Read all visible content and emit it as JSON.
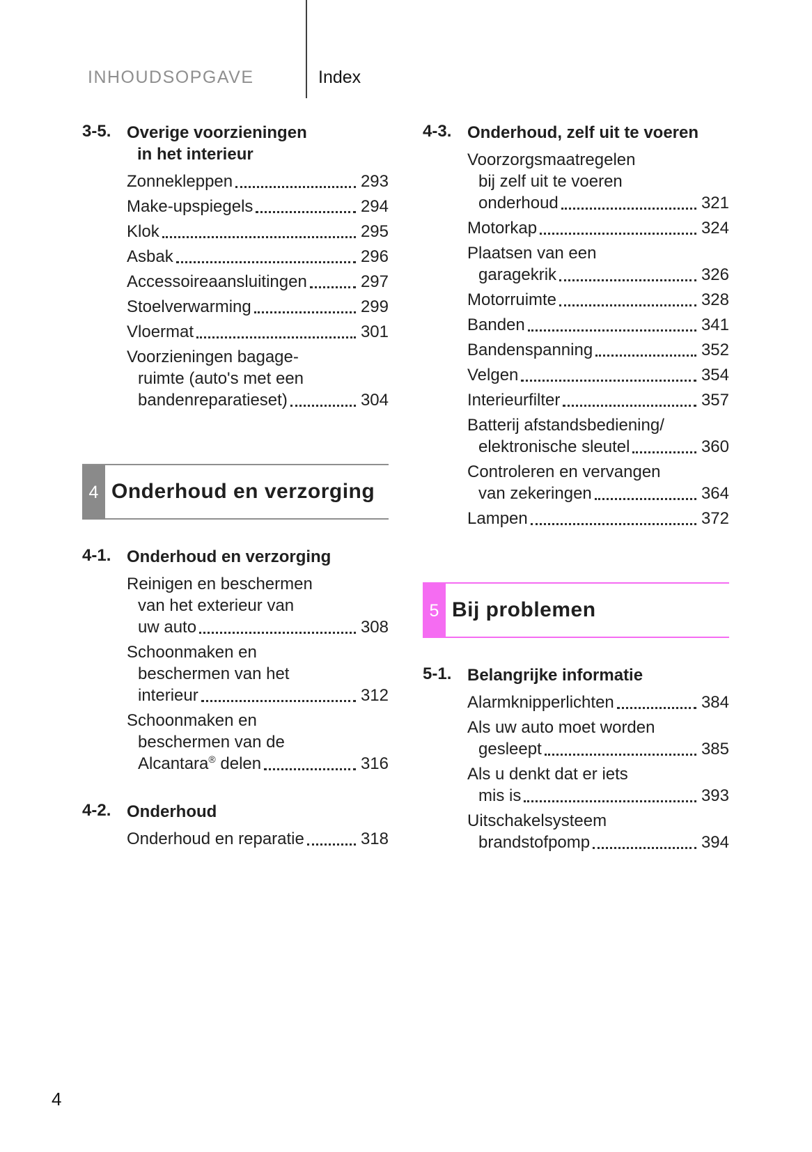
{
  "header": {
    "section_label": "INHOUDSOPGAVE",
    "index_label": "Index"
  },
  "footer": {
    "page_number": "4"
  },
  "colors": {
    "text": "#1f1f1f",
    "header_gray": "#8f8f8f",
    "header_divider": "#3f3f3f",
    "chapter4_box": "#8a8a8a",
    "chapter4_rule": "#8f8f8f",
    "chapter5_box": "#f56cf2",
    "chapter5_rule": "#f56cf2"
  },
  "columns": [
    {
      "blocks": [
        {
          "type": "subsection",
          "num": "3-5.",
          "title_lines": [
            "Overige voorzieningen",
            "in het interieur"
          ],
          "entries": [
            {
              "lines": [
                "Zonnekleppen"
              ],
              "page": "293"
            },
            {
              "lines": [
                "Make-upspiegels"
              ],
              "page": "294"
            },
            {
              "lines": [
                "Klok"
              ],
              "page": "295"
            },
            {
              "lines": [
                "Asbak"
              ],
              "page": "296"
            },
            {
              "lines": [
                "Accessoireaansluitingen"
              ],
              "page": "297"
            },
            {
              "lines": [
                "Stoelverwarming"
              ],
              "page": "299"
            },
            {
              "lines": [
                "Vloermat"
              ],
              "page": "301"
            },
            {
              "lines": [
                "Voorzieningen bagage-",
                "ruimte (auto's met een",
                "bandenreparatieset)"
              ],
              "page": "304"
            }
          ]
        },
        {
          "type": "chapter",
          "num": "4",
          "title": "Onderhoud en verzorging",
          "box_color": "#8a8a8a",
          "rule_color": "#8f8f8f"
        },
        {
          "type": "subsection",
          "num": "4-1.",
          "title_lines": [
            "Onderhoud en verzorging"
          ],
          "entries": [
            {
              "lines": [
                "Reinigen en beschermen",
                "van het exterieur van",
                "uw auto"
              ],
              "page": "308"
            },
            {
              "lines": [
                "Schoonmaken en",
                "beschermen van het",
                "interieur"
              ],
              "page": "312"
            },
            {
              "lines": [
                "Schoonmaken en",
                "beschermen van de",
                "Alcantara® delen"
              ],
              "page": "316"
            }
          ]
        },
        {
          "type": "subsection",
          "num": "4-2.",
          "title_lines": [
            "Onderhoud"
          ],
          "entries": [
            {
              "lines": [
                "Onderhoud en reparatie"
              ],
              "page": "318"
            }
          ]
        }
      ]
    },
    {
      "blocks": [
        {
          "type": "subsection",
          "num": "4-3.",
          "title_lines": [
            "Onderhoud, zelf uit te voeren"
          ],
          "entries": [
            {
              "lines": [
                "Voorzorgsmaatregelen",
                "bij zelf uit te voeren",
                "onderhoud"
              ],
              "page": "321"
            },
            {
              "lines": [
                "Motorkap"
              ],
              "page": "324"
            },
            {
              "lines": [
                "Plaatsen van een",
                "garagekrik"
              ],
              "page": "326"
            },
            {
              "lines": [
                "Motorruimte"
              ],
              "page": "328"
            },
            {
              "lines": [
                "Banden"
              ],
              "page": "341"
            },
            {
              "lines": [
                "Bandenspanning"
              ],
              "page": "352"
            },
            {
              "lines": [
                "Velgen"
              ],
              "page": "354"
            },
            {
              "lines": [
                "Interieurfilter"
              ],
              "page": "357"
            },
            {
              "lines": [
                "Batterij afstandsbediening/",
                "elektronische sleutel"
              ],
              "page": "360"
            },
            {
              "lines": [
                "Controleren en vervangen",
                "van zekeringen"
              ],
              "page": "364"
            },
            {
              "lines": [
                "Lampen"
              ],
              "page": "372"
            }
          ]
        },
        {
          "type": "chapter",
          "num": "5",
          "title": "Bij problemen",
          "box_color": "#f56cf2",
          "rule_color": "#f56cf2"
        },
        {
          "type": "subsection",
          "num": "5-1.",
          "title_lines": [
            "Belangrijke informatie"
          ],
          "entries": [
            {
              "lines": [
                "Alarmknipperlichten"
              ],
              "page": "384"
            },
            {
              "lines": [
                "Als uw auto moet worden",
                "gesleept"
              ],
              "page": "385"
            },
            {
              "lines": [
                "Als u denkt dat er iets",
                "mis is"
              ],
              "page": "393"
            },
            {
              "lines": [
                "Uitschakelsysteem",
                "brandstofpomp"
              ],
              "page": "394"
            }
          ]
        }
      ]
    }
  ]
}
